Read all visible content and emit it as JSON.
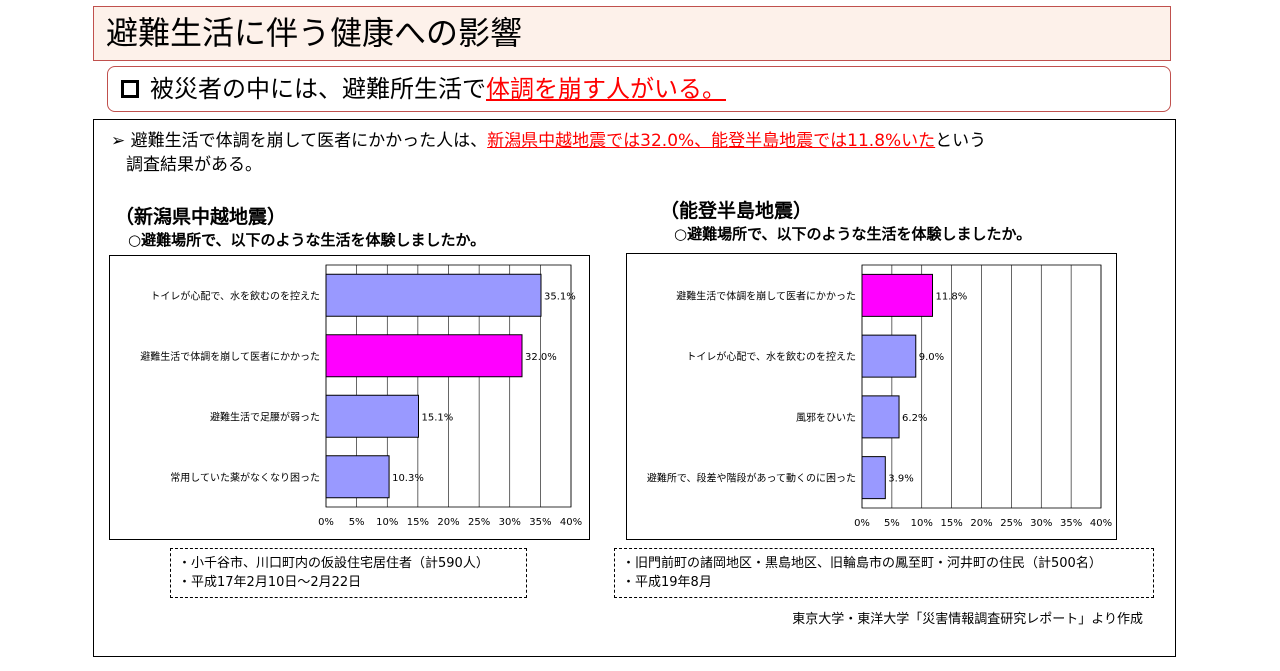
{
  "header": {
    "title": "避難生活に伴う健康への影響"
  },
  "subtitle": {
    "prefix": "被災者の中には、避難所生活で",
    "highlight": "体調を崩す人がいる。"
  },
  "bullet": {
    "marker": "➢",
    "text_before": "避難生活で体調を崩して医者にかかった人は、",
    "highlight": "新潟県中越地震では32.0%、能登半島地震では11.8%いた",
    "text_after": "という",
    "line2": "調査結果がある。"
  },
  "left": {
    "title": "（新潟県中越地震）",
    "question": "○避難場所で、以下のような生活を体験しましたか。",
    "notes": [
      "・小千谷市、川口町内の仮設住宅居住者（計590人）",
      "・平成17年2月10日～2月22日"
    ]
  },
  "right": {
    "title": "（能登半島地震）",
    "question": "○避難場所で、以下のような生活を体験しましたか。",
    "notes": [
      "・旧門前町の諸岡地区・黒島地区、旧輪島市の鳳至町・河井町の住民（計500名）",
      "・平成19年8月"
    ]
  },
  "credit": "東京大学・東洋大学「災害情報調査研究レポート」より作成",
  "colors": {
    "bar": "#9999ff",
    "highlight_bar": "#ff00ff",
    "accent_red": "#ff0000",
    "title_bg": "#fdf1ea",
    "title_border": "#c0504d"
  },
  "chart_data": [
    {
      "type": "bar",
      "orientation": "horizontal",
      "categories": [
        "トイレが心配で、水を飲むのを控えた",
        "避難生活で体調を崩して医者にかかった",
        "避難生活で足腰が弱った",
        "常用していた薬がなくなり困った"
      ],
      "values": [
        35.1,
        32.0,
        15.1,
        10.3
      ],
      "labels": [
        "35.1%",
        "32.0%",
        "15.1%",
        "10.3%"
      ],
      "highlight_index": 1,
      "xlim": [
        0,
        40
      ],
      "xticks": [
        "0%",
        "5%",
        "10%",
        "15%",
        "20%",
        "25%",
        "30%",
        "35%",
        "40%"
      ],
      "grid": true
    },
    {
      "type": "bar",
      "orientation": "horizontal",
      "categories": [
        "避難生活で体調を崩して医者にかかった",
        "トイレが心配で、水を飲むのを控えた",
        "風邪をひいた",
        "避難所で、段差や階段があって動くのに困った"
      ],
      "values": [
        11.8,
        9.0,
        6.2,
        3.9
      ],
      "labels": [
        "11.8%",
        "9.0%",
        "6.2%",
        "3.9%"
      ],
      "highlight_index": 0,
      "xlim": [
        0,
        40
      ],
      "xticks": [
        "0%",
        "5%",
        "10%",
        "15%",
        "20%",
        "25%",
        "30%",
        "35%",
        "40%"
      ],
      "grid": true
    }
  ]
}
